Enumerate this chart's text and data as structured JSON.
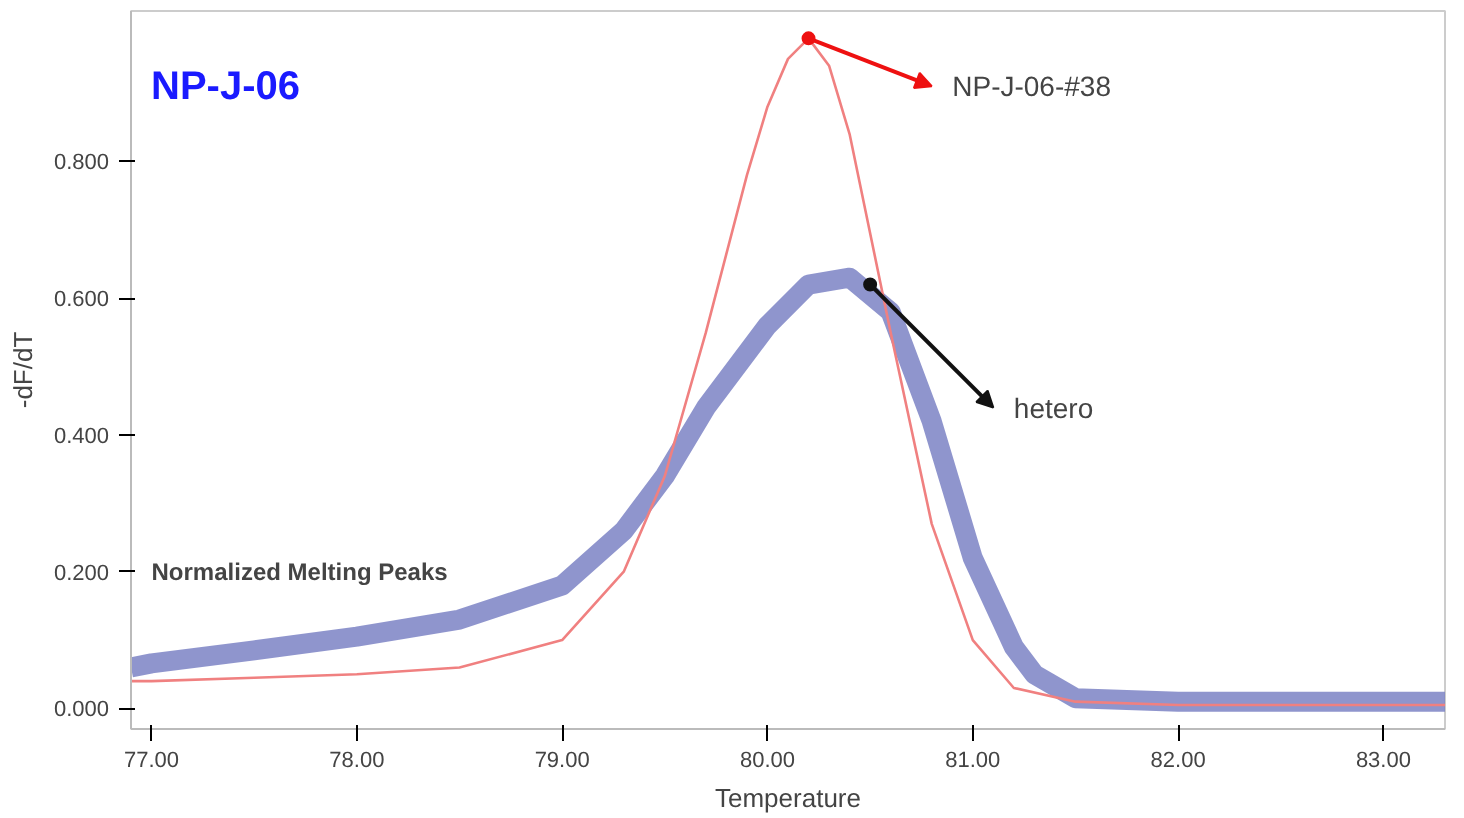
{
  "chart_data": {
    "type": "line",
    "title": "NP-J-06",
    "xlabel": "Temperature",
    "ylabel": "-dF/dT",
    "xlim": [
      76.9,
      83.3
    ],
    "ylim": [
      -0.03,
      1.02
    ],
    "xticks": [
      {
        "value": 77,
        "label": "77.00"
      },
      {
        "value": 78,
        "label": "78.00"
      },
      {
        "value": 79,
        "label": "79.00"
      },
      {
        "value": 80,
        "label": "80.00"
      },
      {
        "value": 81,
        "label": "81.00"
      },
      {
        "value": 82,
        "label": "82.00"
      },
      {
        "value": 83,
        "label": "83.00"
      }
    ],
    "yticks": [
      {
        "value": 0,
        "label": "0.000"
      },
      {
        "value": 0.2,
        "label": "0.200"
      },
      {
        "value": 0.4,
        "label": "0.400"
      },
      {
        "value": 0.6,
        "label": "0.600"
      },
      {
        "value": 0.8,
        "label": "0.800"
      }
    ],
    "grid": false,
    "marker": "none",
    "line_style": "solid",
    "series": [
      {
        "color": "#7b82c4",
        "x": [
          76.9,
          77.0,
          77.5,
          78.0,
          78.5,
          79.0,
          79.3,
          79.5,
          79.7,
          80.0,
          80.2,
          80.4,
          80.6,
          80.8,
          81.0,
          81.2,
          81.3,
          81.5,
          82.0,
          83.3
        ],
        "values": [
          0.06,
          0.066,
          0.085,
          0.105,
          0.13,
          0.18,
          0.26,
          0.34,
          0.44,
          0.56,
          0.62,
          0.63,
          0.58,
          0.42,
          0.22,
          0.09,
          0.05,
          0.015,
          0.01,
          0.01
        ]
      },
      {
        "color": "#f08080",
        "x": [
          76.9,
          77.0,
          77.5,
          78.0,
          78.5,
          79.0,
          79.3,
          79.5,
          79.7,
          79.9,
          80.0,
          80.1,
          80.2,
          80.3,
          80.4,
          80.6,
          80.8,
          81.0,
          81.2,
          81.5,
          82.0,
          83.3
        ],
        "values": [
          0.04,
          0.04,
          0.045,
          0.05,
          0.06,
          0.1,
          0.2,
          0.34,
          0.55,
          0.78,
          0.88,
          0.95,
          0.98,
          0.94,
          0.84,
          0.55,
          0.27,
          0.1,
          0.03,
          0.01,
          0.005,
          0.005
        ]
      }
    ],
    "annotations": [
      {
        "text": "NP-J-06-#38",
        "x": 80.2,
        "y": 0.98
      },
      {
        "text": "hetero",
        "x": 80.5,
        "y": 0.62
      },
      "Normalized Melting Peaks"
    ]
  }
}
